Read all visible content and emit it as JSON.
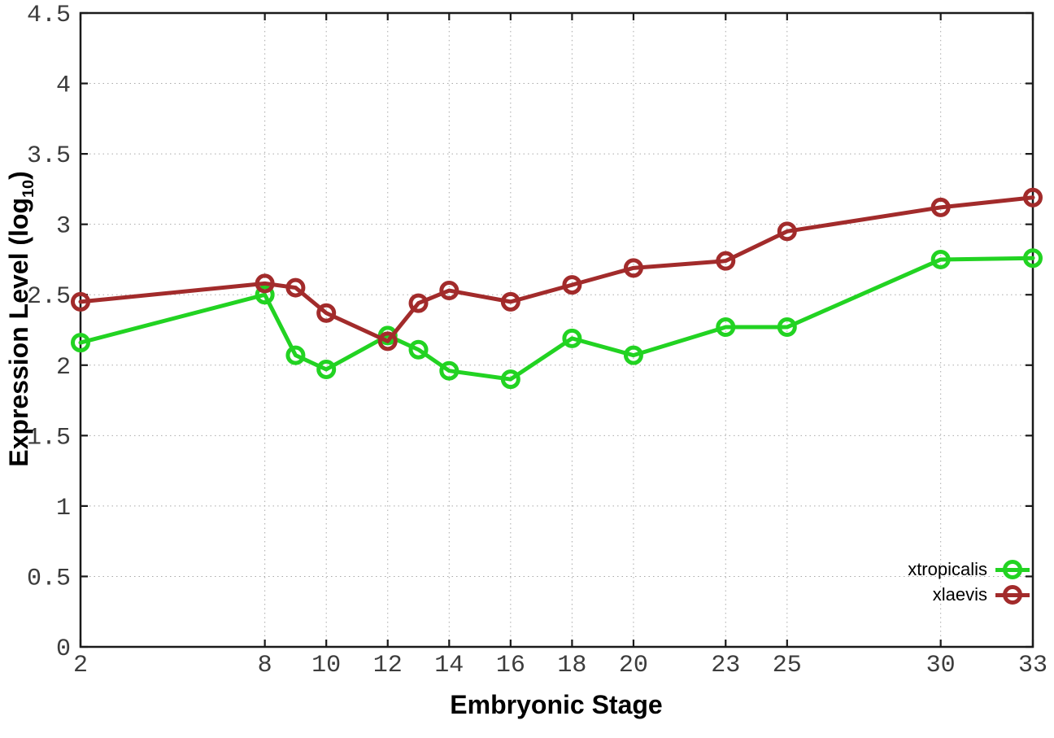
{
  "chart_data": {
    "type": "line",
    "x": [
      2,
      8,
      9,
      10,
      12,
      13,
      14,
      16,
      18,
      20,
      23,
      25,
      30,
      33
    ],
    "series": [
      {
        "name": "xtropicalis",
        "color": "#22d322",
        "values": [
          2.16,
          2.5,
          2.07,
          1.97,
          2.21,
          2.11,
          1.96,
          1.9,
          2.19,
          2.07,
          2.27,
          2.27,
          2.75,
          2.76
        ]
      },
      {
        "name": "xlaevis",
        "color": "#a22b2b",
        "values": [
          2.45,
          2.58,
          2.55,
          2.37,
          2.17,
          2.44,
          2.53,
          2.45,
          2.57,
          2.69,
          2.74,
          2.95,
          3.12,
          3.19
        ]
      }
    ],
    "title": "",
    "xlabel": "Embryonic Stage",
    "ylabel": "Expression Level (log10)",
    "ylabel_parts": {
      "main": "Expression Level (log",
      "sub": "10",
      "end": ")"
    },
    "x_ticks": [
      2,
      8,
      10,
      12,
      14,
      16,
      18,
      20,
      23,
      25,
      30,
      33
    ],
    "y_ticks": [
      0,
      0.5,
      1,
      1.5,
      2,
      2.5,
      3,
      3.5,
      4,
      4.5
    ],
    "xlim": [
      2,
      33
    ],
    "ylim": [
      0,
      4.5
    ],
    "grid": true,
    "legend_position": "bottom-right",
    "legend": [
      "xtropicalis",
      "xlaevis"
    ]
  },
  "colors": {
    "grid": "#a9a9a9",
    "border": "#1a1a1a",
    "tick_label": "#3c3c3c",
    "series_green": "#22d322",
    "series_red": "#a22b2b"
  }
}
